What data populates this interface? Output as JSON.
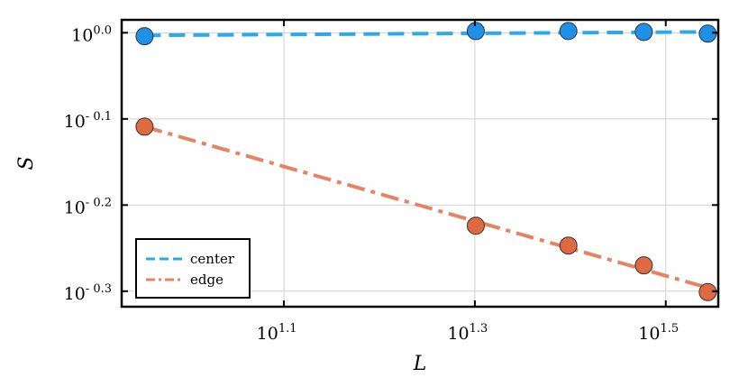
{
  "colors": {
    "center": "#2da8e8",
    "center_marker": "#1e90e8",
    "edge": "#e58462",
    "edge_marker": "#e06a3f",
    "grid": "#d0d0d0",
    "frame": "#000000"
  },
  "chart_data": {
    "type": "scatter",
    "title": "",
    "xlabel": "L",
    "ylabel": "S",
    "xscale": "log10",
    "yscale": "log10",
    "xlim_log10": [
      0.93,
      1.555
    ],
    "ylim_log10": [
      -0.318,
      0.015
    ],
    "grid": true,
    "legend_position": "bottom-left",
    "x_ticks": [
      {
        "base": "10",
        "exp": "1.1",
        "value": 1.1
      },
      {
        "base": "10",
        "exp": "1.3",
        "value": 1.3
      },
      {
        "base": "10",
        "exp": "1.5",
        "value": 1.5
      }
    ],
    "y_ticks": [
      {
        "base": "10",
        "exp": "0.0",
        "value": 0.0
      },
      {
        "base": "10",
        "exp": "- 0.1",
        "value": -0.1
      },
      {
        "base": "10",
        "exp": "- 0.2",
        "value": -0.2
      },
      {
        "base": "10",
        "exp": "- 0.3",
        "value": -0.3
      }
    ],
    "series": [
      {
        "name": "center",
        "style": "dashed",
        "x_log10": [
          0.954,
          1.301,
          1.398,
          1.477,
          1.544
        ],
        "y_log10": [
          -0.004,
          0.002,
          0.002,
          0.001,
          -0.001
        ],
        "fit_log10": {
          "x": [
            0.954,
            1.544
          ],
          "y": [
            -0.003,
            0.001
          ]
        }
      },
      {
        "name": "edge",
        "style": "dashdot",
        "x_log10": [
          0.954,
          1.301,
          1.398,
          1.477,
          1.544
        ],
        "y_log10": [
          -0.109,
          -0.224,
          -0.247,
          -0.27,
          -0.301
        ],
        "fit_log10": {
          "x": [
            0.954,
            1.544
          ],
          "y": [
            -0.109,
            -0.296
          ]
        }
      }
    ]
  }
}
